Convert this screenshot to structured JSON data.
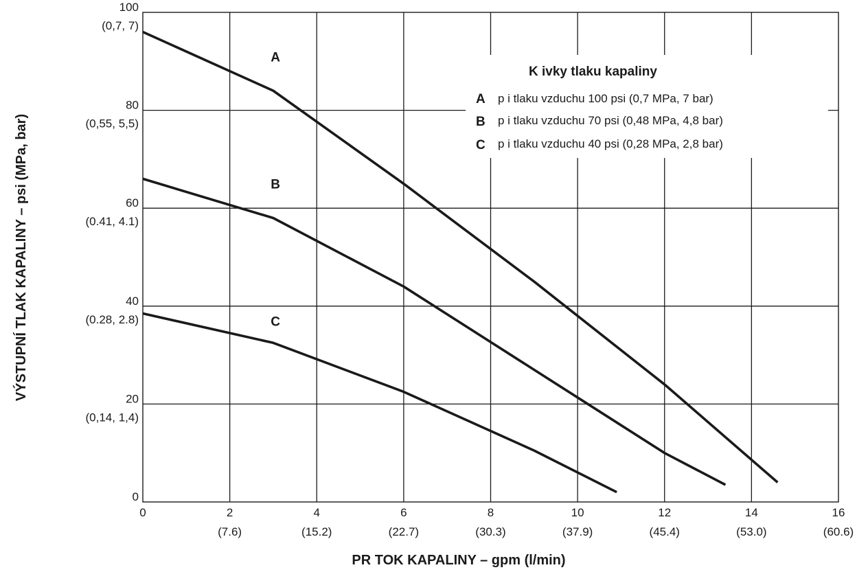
{
  "chart_data": {
    "type": "line",
    "xlabel": "PR   TOK KAPALINY – gpm (l/min)",
    "ylabel": "VÝSTUPNÍ TLAK KAPALINY – psi (MPa, bar)",
    "xlim": [
      0,
      16
    ],
    "ylim": [
      0,
      100
    ],
    "grid": true,
    "x_ticks": [
      {
        "value": 0,
        "label": "0",
        "sub": ""
      },
      {
        "value": 2,
        "label": "2",
        "sub": "(7.6)"
      },
      {
        "value": 4,
        "label": "4",
        "sub": "(15.2)"
      },
      {
        "value": 6,
        "label": "6",
        "sub": "(22.7)"
      },
      {
        "value": 8,
        "label": "8",
        "sub": "(30.3)"
      },
      {
        "value": 10,
        "label": "10",
        "sub": "(37.9)"
      },
      {
        "value": 12,
        "label": "12",
        "sub": "(45.4)"
      },
      {
        "value": 14,
        "label": "14",
        "sub": "(53.0)"
      },
      {
        "value": 16,
        "label": "16",
        "sub": "(60.6)"
      }
    ],
    "y_ticks": [
      {
        "value": 0,
        "label": "0",
        "sub": ""
      },
      {
        "value": 20,
        "label": "20",
        "sub": "(0,14, 1,4)"
      },
      {
        "value": 40,
        "label": "40",
        "sub": "(0.28, 2.8)"
      },
      {
        "value": 60,
        "label": "60",
        "sub": "(0.41, 4.1)"
      },
      {
        "value": 80,
        "label": "80",
        "sub": "(0,55, 5,5)"
      },
      {
        "value": 100,
        "label": "100",
        "sub": "(0,7, 7)"
      }
    ],
    "series": [
      {
        "name": "A",
        "x": [
          0,
          3,
          6,
          9,
          12,
          14.6
        ],
        "y": [
          96,
          84,
          65,
          45,
          24,
          4
        ]
      },
      {
        "name": "B",
        "x": [
          0,
          3,
          6,
          9,
          12,
          13.4
        ],
        "y": [
          66,
          58,
          44,
          27,
          10,
          3.5
        ]
      },
      {
        "name": "C",
        "x": [
          0,
          3,
          6,
          9,
          10.9
        ],
        "y": [
          38.5,
          32.5,
          22.5,
          10.5,
          2
        ]
      }
    ],
    "curve_labels": [
      {
        "text": "A",
        "x": 3.05,
        "y": 90
      },
      {
        "text": "B",
        "x": 3.05,
        "y": 64
      },
      {
        "text": "C",
        "x": 3.05,
        "y": 36
      }
    ],
    "legend": {
      "title": "K  ivky tlaku kapaliny",
      "placement": "top-right",
      "items": [
        {
          "key": "A",
          "text": "p i tlaku vzduchu 100 psi (0,7 MPa, 7 bar)"
        },
        {
          "key": "B",
          "text": "p i tlaku vzduchu 70 psi (0,48 MPa, 4,8 bar)"
        },
        {
          "key": "C",
          "text": "p i tlaku vzduchu 40 psi (0,28 MPa, 2,8 bar)"
        }
      ]
    },
    "colors": {
      "line": "#1a1a1a",
      "grid": "#1a1a1a",
      "background": "#ffffff"
    }
  }
}
